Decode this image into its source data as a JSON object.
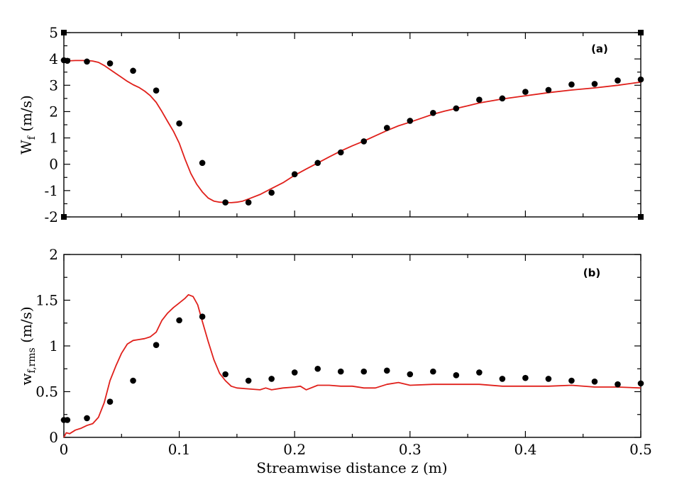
{
  "chart_data": [
    {
      "type": "scatter",
      "panel_label": "(a)",
      "xlabel": "",
      "ylabel_main": "W",
      "ylabel_sub": "f",
      "ylabel_unit": " (m/s)",
      "xlim": [
        0,
        0.5
      ],
      "ylim": [
        -2,
        5
      ],
      "xticks": [
        0,
        0.1,
        0.2,
        0.3,
        0.4,
        0.5
      ],
      "yticks": [
        -2,
        -1,
        0,
        1,
        2,
        3,
        4,
        5
      ],
      "ytick_labels": [
        "-2",
        "-1",
        "0",
        "1",
        "2",
        "3",
        "4",
        "5"
      ],
      "show_xtick_labels": false,
      "grid": false,
      "series": [
        {
          "kind": "points",
          "color": "#000000",
          "x": [
            0.0,
            0.003,
            0.02,
            0.04,
            0.06,
            0.08,
            0.1,
            0.12,
            0.14,
            0.16,
            0.18,
            0.2,
            0.22,
            0.24,
            0.26,
            0.28,
            0.3,
            0.32,
            0.34,
            0.36,
            0.38,
            0.4,
            0.42,
            0.44,
            0.46,
            0.48,
            0.5
          ],
          "y": [
            3.95,
            3.93,
            3.9,
            3.83,
            3.55,
            2.8,
            1.55,
            0.05,
            -1.45,
            -1.45,
            -1.08,
            -0.38,
            0.05,
            0.45,
            0.87,
            1.38,
            1.65,
            1.95,
            2.12,
            2.45,
            2.5,
            2.75,
            2.82,
            3.03,
            3.05,
            3.18,
            3.22
          ]
        },
        {
          "kind": "line",
          "color": "#e0201b",
          "x": [
            0.0,
            0.01,
            0.02,
            0.025,
            0.03,
            0.035,
            0.04,
            0.045,
            0.05,
            0.055,
            0.06,
            0.065,
            0.07,
            0.075,
            0.08,
            0.085,
            0.09,
            0.095,
            0.1,
            0.105,
            0.11,
            0.115,
            0.12,
            0.125,
            0.13,
            0.135,
            0.14,
            0.145,
            0.15,
            0.155,
            0.16,
            0.17,
            0.18,
            0.19,
            0.2,
            0.21,
            0.22,
            0.23,
            0.24,
            0.25,
            0.26,
            0.27,
            0.28,
            0.29,
            0.3,
            0.31,
            0.32,
            0.33,
            0.34,
            0.35,
            0.36,
            0.38,
            0.4,
            0.42,
            0.44,
            0.46,
            0.48,
            0.5
          ],
          "y": [
            3.92,
            3.94,
            3.94,
            3.92,
            3.87,
            3.75,
            3.6,
            3.45,
            3.3,
            3.15,
            3.02,
            2.92,
            2.78,
            2.6,
            2.35,
            2.0,
            1.62,
            1.25,
            0.8,
            0.2,
            -0.35,
            -0.75,
            -1.05,
            -1.28,
            -1.4,
            -1.44,
            -1.45,
            -1.46,
            -1.44,
            -1.4,
            -1.32,
            -1.15,
            -0.92,
            -0.7,
            -0.42,
            -0.18,
            0.05,
            0.28,
            0.5,
            0.7,
            0.88,
            1.08,
            1.28,
            1.46,
            1.6,
            1.75,
            1.9,
            2.02,
            2.12,
            2.22,
            2.33,
            2.48,
            2.6,
            2.72,
            2.82,
            2.9,
            3.0,
            3.12
          ]
        }
      ]
    },
    {
      "type": "scatter",
      "panel_label": "(b)",
      "xlabel": "Streamwise distance z (m)",
      "ylabel_main": "w",
      "ylabel_sub": "f,rms",
      "ylabel_unit": " (m/s)",
      "xlim": [
        0,
        0.5
      ],
      "ylim": [
        0,
        2
      ],
      "xticks": [
        0,
        0.1,
        0.2,
        0.3,
        0.4,
        0.5
      ],
      "xtick_labels": [
        "0",
        "0.1",
        "0.2",
        "0.3",
        "0.4",
        "0.5"
      ],
      "yticks": [
        0,
        0.5,
        1,
        1.5,
        2
      ],
      "ytick_labels": [
        "0",
        "0.5",
        "1",
        "1.5",
        "2"
      ],
      "show_xtick_labels": true,
      "grid": false,
      "series": [
        {
          "kind": "points",
          "color": "#000000",
          "x": [
            0.0,
            0.003,
            0.02,
            0.04,
            0.06,
            0.08,
            0.1,
            0.12,
            0.14,
            0.16,
            0.18,
            0.2,
            0.22,
            0.24,
            0.26,
            0.28,
            0.3,
            0.32,
            0.34,
            0.36,
            0.38,
            0.4,
            0.42,
            0.44,
            0.46,
            0.48,
            0.5
          ],
          "y": [
            0.19,
            0.19,
            0.21,
            0.39,
            0.62,
            1.01,
            1.28,
            1.32,
            0.69,
            0.62,
            0.64,
            0.71,
            0.75,
            0.72,
            0.72,
            0.73,
            0.69,
            0.72,
            0.68,
            0.71,
            0.64,
            0.65,
            0.64,
            0.62,
            0.61,
            0.58,
            0.59
          ]
        },
        {
          "kind": "line",
          "color": "#e0201b",
          "x": [
            0.0,
            0.002,
            0.005,
            0.01,
            0.015,
            0.02,
            0.025,
            0.03,
            0.035,
            0.04,
            0.045,
            0.05,
            0.055,
            0.06,
            0.065,
            0.07,
            0.075,
            0.08,
            0.085,
            0.09,
            0.095,
            0.1,
            0.105,
            0.108,
            0.112,
            0.116,
            0.12,
            0.125,
            0.13,
            0.135,
            0.14,
            0.145,
            0.15,
            0.16,
            0.17,
            0.175,
            0.18,
            0.19,
            0.2,
            0.205,
            0.21,
            0.22,
            0.23,
            0.24,
            0.25,
            0.26,
            0.27,
            0.28,
            0.29,
            0.3,
            0.32,
            0.34,
            0.36,
            0.38,
            0.4,
            0.42,
            0.44,
            0.46,
            0.48,
            0.5
          ],
          "y": [
            0.0,
            0.05,
            0.04,
            0.08,
            0.1,
            0.13,
            0.15,
            0.22,
            0.38,
            0.62,
            0.78,
            0.92,
            1.02,
            1.06,
            1.07,
            1.08,
            1.1,
            1.15,
            1.28,
            1.36,
            1.42,
            1.47,
            1.52,
            1.56,
            1.54,
            1.45,
            1.27,
            1.05,
            0.85,
            0.7,
            0.62,
            0.56,
            0.54,
            0.53,
            0.52,
            0.54,
            0.52,
            0.54,
            0.55,
            0.56,
            0.52,
            0.57,
            0.57,
            0.56,
            0.56,
            0.54,
            0.54,
            0.58,
            0.6,
            0.57,
            0.58,
            0.58,
            0.58,
            0.56,
            0.56,
            0.56,
            0.57,
            0.55,
            0.55,
            0.54
          ]
        }
      ]
    }
  ]
}
